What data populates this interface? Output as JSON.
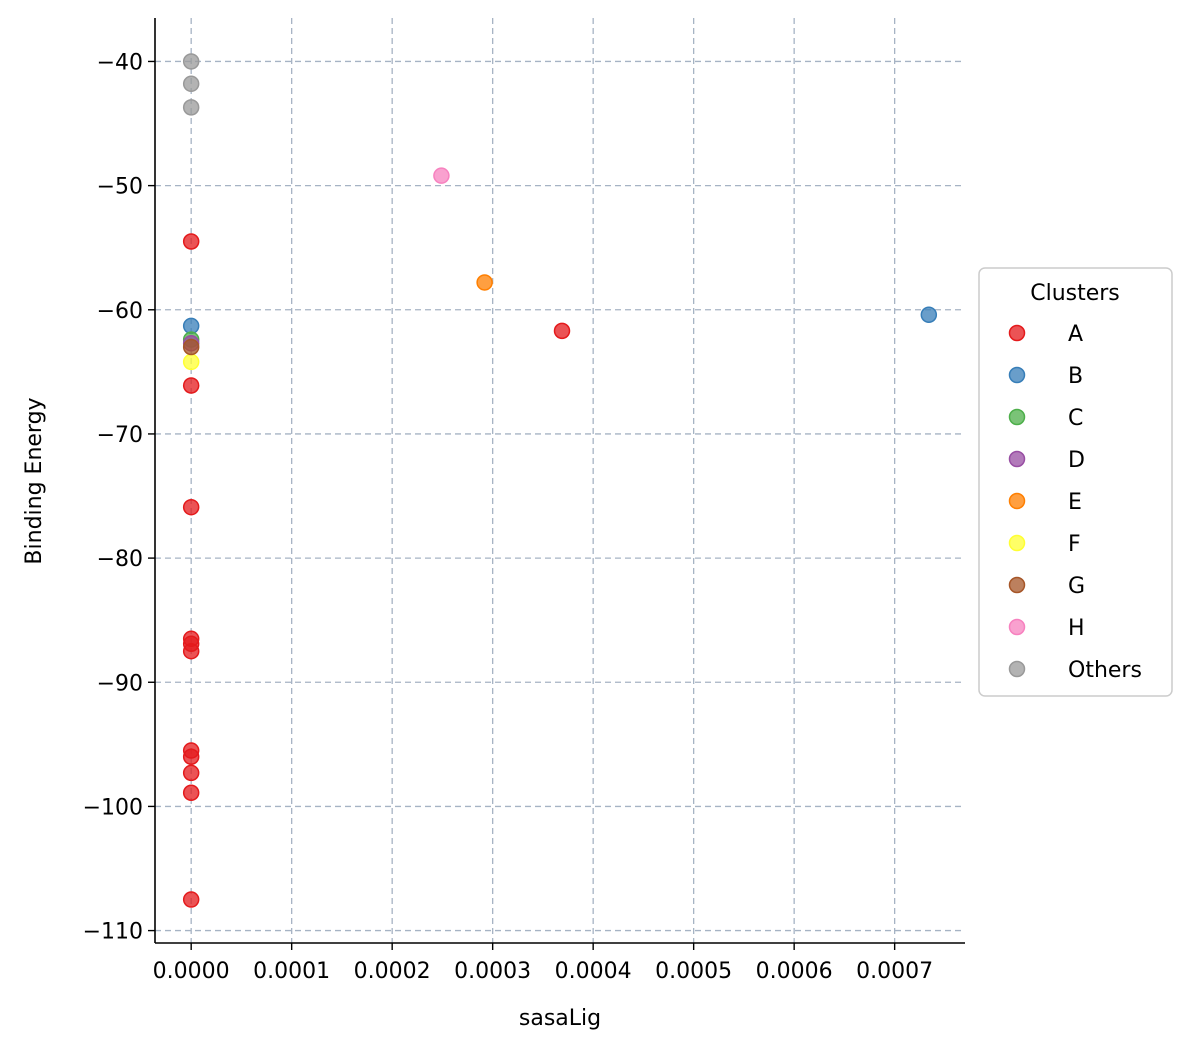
{
  "chart_data": {
    "type": "scatter",
    "xlabel": "sasaLig",
    "ylabel": "Binding Energy",
    "xlim": [
      -3.6e-05,
      0.00077
    ],
    "ylim": [
      -111,
      -36.5
    ],
    "xticks": [
      0.0,
      0.0001,
      0.0002,
      0.0003,
      0.0004,
      0.0005,
      0.0006,
      0.0007
    ],
    "xtick_labels": [
      "0.0000",
      "0.0001",
      "0.0002",
      "0.0003",
      "0.0004",
      "0.0005",
      "0.0006",
      "0.0007"
    ],
    "yticks": [
      -40,
      -50,
      -60,
      -70,
      -80,
      -90,
      -100,
      -110
    ],
    "ytick_labels": [
      "−40",
      "−50",
      "−60",
      "−70",
      "−80",
      "−90",
      "−100",
      "−110"
    ],
    "grid": true,
    "legend": {
      "title": "Clusters",
      "placement": "right"
    },
    "series": [
      {
        "name": "A",
        "color": "#e41a1c",
        "points": [
          [
            0.0,
            -54.5
          ],
          [
            0.0,
            -66.1
          ],
          [
            0.0,
            -75.9
          ],
          [
            0.0,
            -86.5
          ],
          [
            0.0,
            -86.9
          ],
          [
            0.0,
            -87.5
          ],
          [
            0.0,
            -95.5
          ],
          [
            0.0,
            -96.0
          ],
          [
            0.0,
            -97.3
          ],
          [
            0.0,
            -98.9
          ],
          [
            0.0,
            -107.5
          ],
          [
            0.000369,
            -61.7
          ]
        ]
      },
      {
        "name": "B",
        "color": "#377eb8",
        "points": [
          [
            0.0,
            -61.3
          ],
          [
            0.000734,
            -60.4
          ]
        ]
      },
      {
        "name": "C",
        "color": "#4daf4a",
        "points": [
          [
            0.0,
            -62.4
          ]
        ]
      },
      {
        "name": "D",
        "color": "#984ea3",
        "points": [
          [
            0.0,
            -62.7
          ]
        ]
      },
      {
        "name": "E",
        "color": "#ff7f00",
        "points": [
          [
            0.000292,
            -57.8
          ]
        ]
      },
      {
        "name": "F",
        "color": "#ffff33",
        "points": [
          [
            0.0,
            -64.2
          ]
        ]
      },
      {
        "name": "G",
        "color": "#a65628",
        "points": [
          [
            0.0,
            -63.0
          ]
        ]
      },
      {
        "name": "H",
        "color": "#f781bf",
        "points": [
          [
            0.000249,
            -49.2
          ]
        ]
      },
      {
        "name": "Others",
        "color": "#999999",
        "points": [
          [
            0.0,
            -40.0
          ],
          [
            0.0,
            -41.8
          ],
          [
            0.0,
            -43.7
          ]
        ]
      }
    ]
  }
}
